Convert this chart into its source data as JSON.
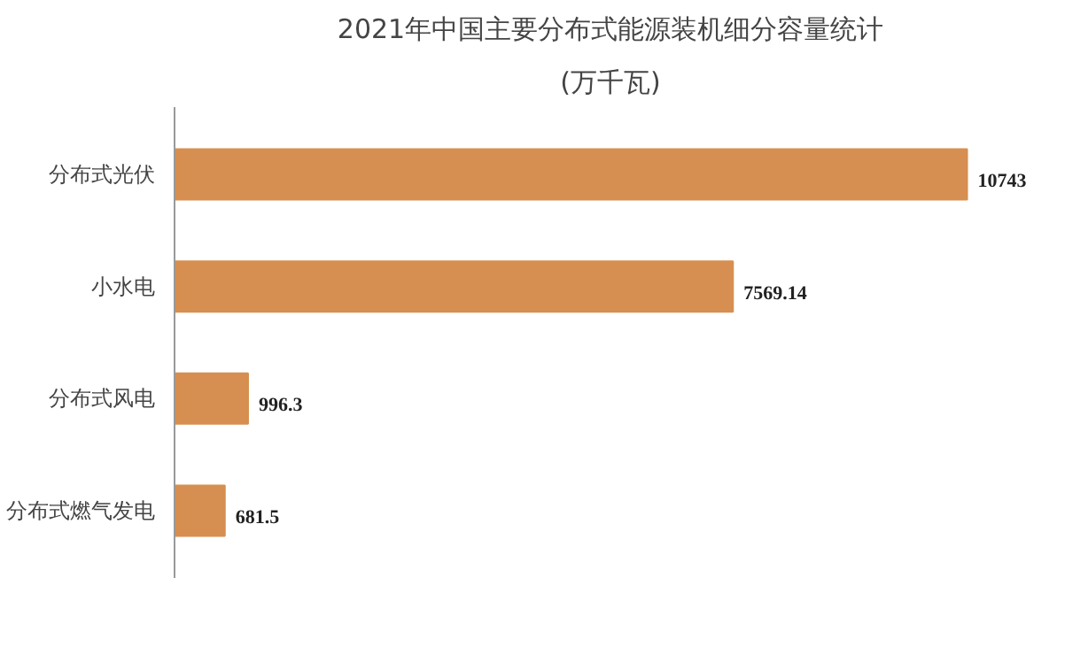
{
  "chart_data": {
    "type": "bar",
    "orientation": "horizontal",
    "title": "2021年中国主要分布式能源装机细分容量统计",
    "subtitle": "(万千瓦)",
    "categories": [
      "分布式光伏",
      "小水电",
      "分布式风电",
      "分布式燃气发电"
    ],
    "values": [
      10743,
      7569.14,
      996.3,
      681.5
    ],
    "value_labels": [
      "10743",
      "7569.14",
      "996.3",
      "681.5"
    ],
    "color": "#d68f50",
    "grid": false
  }
}
